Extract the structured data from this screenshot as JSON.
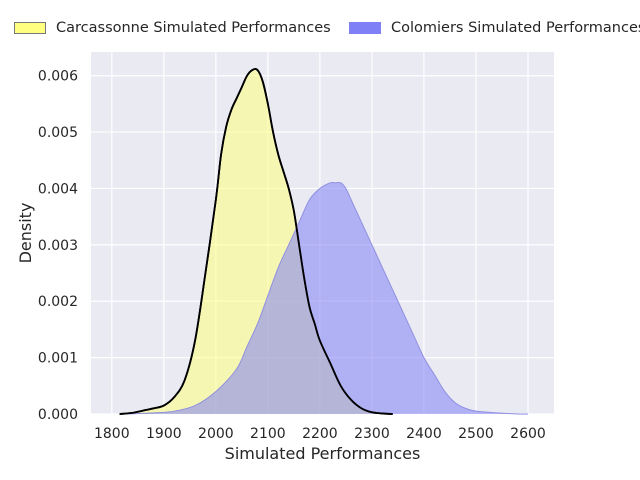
{
  "chart_data": {
    "type": "area",
    "xlabel": "Simulated Performances",
    "ylabel": "Density",
    "xlim": [
      1760,
      2650
    ],
    "ylim": [
      0,
      0.00642
    ],
    "xticks": [
      1800,
      1900,
      2000,
      2100,
      2200,
      2300,
      2400,
      2500,
      2600
    ],
    "xtick_labels": [
      "1800",
      "1900",
      "2000",
      "2100",
      "2200",
      "2300",
      "2400",
      "2500",
      "2600"
    ],
    "yticks": [
      0,
      0.001,
      0.002,
      0.003,
      0.004,
      0.005,
      0.006
    ],
    "ytick_labels": [
      "0.000",
      "0.001",
      "0.002",
      "0.003",
      "0.004",
      "0.005",
      "0.006"
    ],
    "grid": true,
    "legend_position": "top",
    "background": "#eaeaf2",
    "series": [
      {
        "name": "Carcassonne Simulated Performances",
        "fill": "#ffff80",
        "fill_opacity": 0.55,
        "line": "#000000",
        "legend_fill": "#ffff80",
        "legend_edge": "#777777",
        "x": [
          1815,
          1840,
          1860,
          1880,
          1900,
          1920,
          1940,
          1960,
          1980,
          2000,
          2010,
          2020,
          2030,
          2040,
          2050,
          2060,
          2070,
          2080,
          2090,
          2100,
          2110,
          2120,
          2130,
          2140,
          2150,
          2160,
          2170,
          2180,
          2190,
          2200,
          2220,
          2240,
          2260,
          2280,
          2300,
          2320,
          2340
        ],
        "y": [
          0.0,
          2e-05,
          6e-05,
          0.0001,
          0.00015,
          0.0003,
          0.0006,
          0.0013,
          0.0025,
          0.0038,
          0.0046,
          0.0051,
          0.0054,
          0.0056,
          0.0058,
          0.006,
          0.0061,
          0.0061,
          0.0059,
          0.0055,
          0.005,
          0.0046,
          0.0043,
          0.004,
          0.0036,
          0.003,
          0.0024,
          0.0019,
          0.0016,
          0.0013,
          0.0009,
          0.0005,
          0.00025,
          0.0001,
          3e-05,
          1e-05,
          0.0
        ]
      },
      {
        "name": "Colomiers Simulated Performances",
        "fill": "#8080f6",
        "fill_opacity": 0.55,
        "line": "#9090e0",
        "legend_fill": "#8080f6",
        "legend_edge": "#8080f6",
        "x": [
          1830,
          1880,
          1920,
          1960,
          2000,
          2040,
          2060,
          2080,
          2100,
          2120,
          2140,
          2160,
          2180,
          2200,
          2220,
          2230,
          2240,
          2250,
          2260,
          2280,
          2300,
          2320,
          2340,
          2360,
          2380,
          2400,
          2420,
          2440,
          2460,
          2480,
          2500,
          2540,
          2580,
          2600
        ],
        "y": [
          0.0,
          2e-05,
          5e-05,
          0.00015,
          0.0004,
          0.0008,
          0.0012,
          0.0016,
          0.0021,
          0.0026,
          0.003,
          0.0034,
          0.0038,
          0.004,
          0.0041,
          0.0041,
          0.0041,
          0.004,
          0.0038,
          0.0034,
          0.003,
          0.0026,
          0.0022,
          0.0018,
          0.0014,
          0.001,
          0.0007,
          0.0004,
          0.0002,
          0.0001,
          5e-05,
          2e-05,
          0.0,
          0.0
        ]
      }
    ]
  }
}
